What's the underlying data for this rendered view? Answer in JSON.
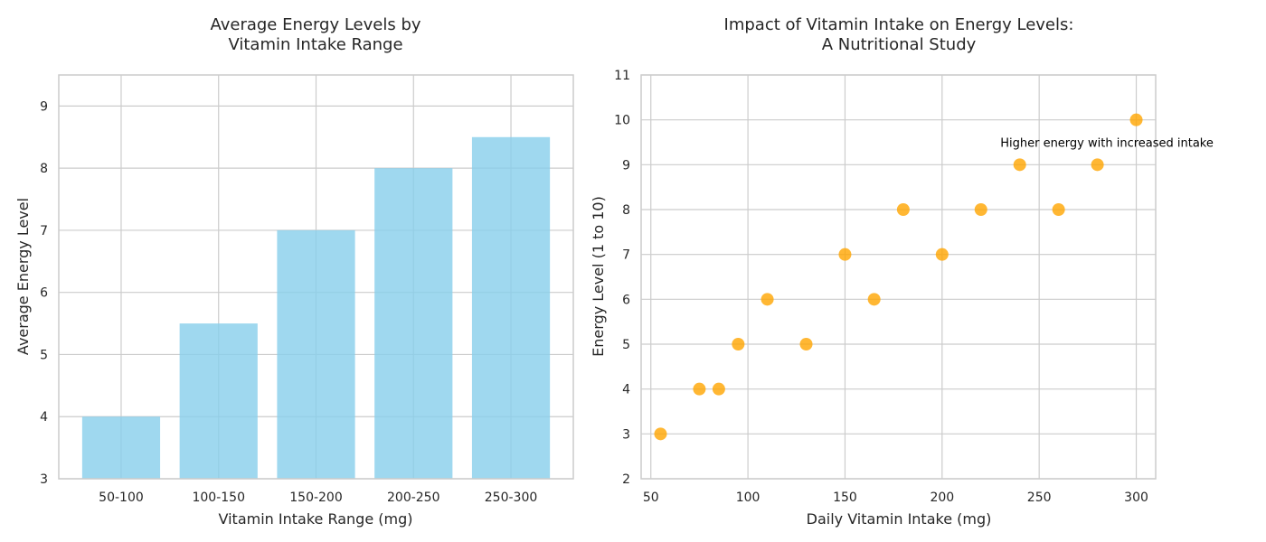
{
  "chart_data": [
    {
      "type": "bar",
      "title_lines": [
        "Average Energy Levels by",
        "Vitamin Intake Range"
      ],
      "xlabel": "Vitamin Intake Range (mg)",
      "ylabel": "Average Energy Level",
      "categories": [
        "50-100",
        "100-150",
        "150-200",
        "200-250",
        "250-300"
      ],
      "values": [
        4.0,
        5.5,
        7.0,
        8.0,
        8.5
      ],
      "ylim": [
        3,
        9.5
      ],
      "yticks": [
        3,
        4,
        5,
        6,
        7,
        8,
        9
      ],
      "grid": true,
      "bar_color": "#87ceeb"
    },
    {
      "type": "scatter",
      "title_lines": [
        "Impact of Vitamin Intake on Energy Levels:",
        "A Nutritional Study"
      ],
      "xlabel": "Daily Vitamin Intake (mg)",
      "ylabel": "Energy Level (1 to 10)",
      "x": [
        55,
        75,
        85,
        95,
        110,
        130,
        150,
        165,
        180,
        200,
        220,
        240,
        260,
        280,
        300
      ],
      "y": [
        3,
        4,
        4,
        5,
        6,
        5,
        7,
        6,
        8,
        7,
        8,
        9,
        8,
        9,
        10
      ],
      "xlim": [
        45,
        310
      ],
      "ylim": [
        2,
        11
      ],
      "xticks": [
        50,
        100,
        150,
        200,
        250,
        300
      ],
      "yticks": [
        2,
        3,
        4,
        5,
        6,
        7,
        8,
        9,
        10,
        11
      ],
      "grid": true,
      "point_color": "#ffa500",
      "annotation": {
        "text": "Higher energy with increased intake",
        "x": 230,
        "y": 9.5
      }
    }
  ]
}
